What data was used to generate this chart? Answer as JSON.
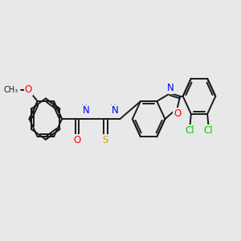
{
  "background_color": "#e8e8e8",
  "bond_color": "#1a1a1a",
  "bond_width": 1.4,
  "atom_colors": {
    "O": "#ff0000",
    "N": "#0000ee",
    "S": "#ccaa00",
    "Cl": "#00cc00",
    "C": "#1a1a1a",
    "H": "#4a9090"
  },
  "font_size": 8.5,
  "fig_width": 3.0,
  "fig_height": 3.0,
  "xlim": [
    0,
    10
  ],
  "ylim": [
    1,
    9
  ]
}
